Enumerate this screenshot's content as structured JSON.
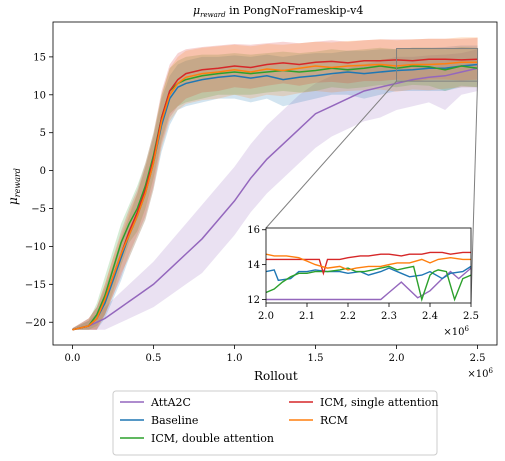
{
  "chart_data": [
    {
      "type": "line",
      "title_main": "μ",
      "title_sub": "reward",
      "title_rest": " in PongNoFrameskip-v4",
      "xlabel": "Rollout",
      "ylabel_main": "μ",
      "ylabel_sub": "reward",
      "xlim": [
        -0.12,
        2.62
      ],
      "ylim": [
        -23,
        19.6
      ],
      "xticks": [
        0.0,
        0.5,
        1.0,
        1.5,
        2.0,
        2.5
      ],
      "xtick_labels": [
        "0.0",
        "0.5",
        "1.0",
        "1.5",
        "2.0",
        "2.5"
      ],
      "x_multiplier": "×10",
      "x_multiplier_exp": "6",
      "yticks": [
        -20,
        -15,
        -10,
        -5,
        0,
        5,
        10,
        15
      ],
      "ytick_labels": [
        "−20",
        "−15",
        "−10",
        "−5",
        "0",
        "5",
        "10",
        "15"
      ],
      "legend_position": "below",
      "series": [
        {
          "name": "AttA2C",
          "color": "#9467bd",
          "band": true,
          "x": [
            0.0,
            0.1,
            0.2,
            0.3,
            0.4,
            0.5,
            0.6,
            0.7,
            0.8,
            0.9,
            1.0,
            1.1,
            1.2,
            1.3,
            1.4,
            1.5,
            1.6,
            1.7,
            1.8,
            1.9,
            2.0,
            2.1,
            2.2,
            2.3,
            2.4,
            2.5
          ],
          "y": [
            -21,
            -20.5,
            -19.5,
            -18,
            -16.5,
            -15,
            -13,
            -11,
            -9,
            -6.5,
            -4,
            -1,
            1.5,
            3.5,
            5.5,
            7.5,
            8.5,
            9.5,
            10.5,
            11,
            11.5,
            12,
            12.3,
            12.5,
            13,
            13.5
          ],
          "upper": [
            -20.8,
            -19.8,
            -18,
            -16,
            -14,
            -12,
            -9.5,
            -7,
            -4.5,
            -2,
            0.5,
            3.5,
            6,
            8,
            10,
            11.5,
            12.5,
            13.5,
            14,
            14.5,
            15,
            15,
            15.2,
            15.3,
            15.5,
            16
          ],
          "lower": [
            -21,
            -21,
            -21,
            -20,
            -19,
            -18,
            -16.5,
            -15,
            -13.5,
            -11,
            -8.5,
            -5.5,
            -3,
            -1,
            1,
            3,
            4.5,
            5.5,
            6.5,
            7,
            8,
            8.5,
            9,
            8,
            10,
            10.5
          ]
        },
        {
          "name": "Baseline",
          "color": "#1f77b4",
          "band": true,
          "x": [
            0.0,
            0.1,
            0.15,
            0.2,
            0.25,
            0.3,
            0.35,
            0.4,
            0.45,
            0.5,
            0.55,
            0.6,
            0.65,
            0.7,
            0.8,
            0.9,
            1.0,
            1.1,
            1.2,
            1.3,
            1.4,
            1.5,
            1.6,
            1.7,
            1.8,
            1.9,
            2.0,
            2.1,
            2.2,
            2.3,
            2.4,
            2.5
          ],
          "y": [
            -21,
            -20.5,
            -19.5,
            -17.5,
            -14.5,
            -11.5,
            -8.5,
            -6,
            -3,
            1,
            6,
            9.5,
            11,
            11.5,
            12,
            12.3,
            12.5,
            12.2,
            12.5,
            12,
            12.3,
            12.5,
            12.8,
            13,
            12.8,
            13,
            13.2,
            13.3,
            13.5,
            13.5,
            13.8,
            14
          ],
          "upper": [
            -20.8,
            -19.5,
            -18,
            -15.5,
            -12.5,
            -9,
            -6,
            -3,
            0.5,
            4.5,
            9.5,
            12.5,
            14,
            14.5,
            15,
            15,
            15.2,
            15,
            15.3,
            15,
            15.3,
            15.5,
            15.5,
            15.8,
            15.8,
            16,
            16,
            16.2,
            16.2,
            16.3,
            16.5,
            16.5
          ],
          "lower": [
            -21,
            -21,
            -21,
            -19.5,
            -17,
            -14.5,
            -11.5,
            -9,
            -6.5,
            -2.5,
            2.5,
            6,
            8,
            8.5,
            9,
            9.5,
            9.5,
            9,
            9.5,
            8.5,
            9,
            9.5,
            10,
            10,
            9.5,
            10,
            10.5,
            10.5,
            10.5,
            10.5,
            11,
            11
          ]
        },
        {
          "name": "ICM, double attention",
          "color": "#2ca02c",
          "band": true,
          "x": [
            0.0,
            0.1,
            0.15,
            0.2,
            0.25,
            0.3,
            0.35,
            0.4,
            0.45,
            0.5,
            0.55,
            0.6,
            0.65,
            0.7,
            0.8,
            0.9,
            1.0,
            1.1,
            1.2,
            1.3,
            1.4,
            1.5,
            1.6,
            1.7,
            1.8,
            1.9,
            2.0,
            2.1,
            2.2,
            2.3,
            2.4,
            2.5
          ],
          "y": [
            -21,
            -20.5,
            -19,
            -16.5,
            -13,
            -9.5,
            -7,
            -5,
            -2,
            2,
            7,
            10.5,
            11.5,
            12,
            12.5,
            12.8,
            13,
            12.8,
            13,
            13.2,
            13,
            13.2,
            13.5,
            13.3,
            13.5,
            13.8,
            13.5,
            13.8,
            13.7,
            13.3,
            13.8,
            13.5
          ],
          "upper": [
            -20.8,
            -19.8,
            -17.5,
            -14,
            -10.5,
            -7,
            -4.5,
            -2,
            1,
            5,
            10,
            13.5,
            14.5,
            15,
            15.3,
            15.3,
            15.5,
            15.3,
            15.5,
            15.7,
            15.5,
            15.7,
            16,
            15.8,
            16,
            16.2,
            16,
            16.2,
            16.2,
            16,
            16.3,
            16.2
          ],
          "lower": [
            -21,
            -21,
            -20.5,
            -19,
            -16,
            -12.5,
            -9.5,
            -8,
            -5,
            -1,
            4,
            7.5,
            8.5,
            9,
            9.5,
            10,
            10,
            10,
            10.3,
            10.5,
            10.3,
            10.5,
            11,
            10.8,
            11,
            11.3,
            11,
            11.3,
            11.2,
            10.5,
            11.2,
            11
          ]
        },
        {
          "name": "ICM, single attention",
          "color": "#d62728",
          "band": true,
          "x": [
            0.0,
            0.1,
            0.15,
            0.2,
            0.25,
            0.3,
            0.35,
            0.4,
            0.45,
            0.5,
            0.55,
            0.6,
            0.65,
            0.7,
            0.8,
            0.9,
            1.0,
            1.1,
            1.2,
            1.3,
            1.4,
            1.5,
            1.6,
            1.7,
            1.8,
            1.9,
            2.0,
            2.1,
            2.2,
            2.3,
            2.4,
            2.5
          ],
          "y": [
            -21,
            -20.5,
            -19.5,
            -17,
            -14,
            -11,
            -8,
            -5.5,
            -2.5,
            1.5,
            7,
            10.5,
            12,
            12.8,
            13.3,
            13.5,
            13.8,
            13.6,
            14,
            14.2,
            14,
            14.3,
            14.4,
            14.2,
            14.5,
            14.5,
            14.6,
            14.5,
            14.7,
            14.7,
            14.6,
            14.7
          ],
          "upper": [
            -20.8,
            -19.5,
            -18,
            -15,
            -11.5,
            -8,
            -5,
            -2.5,
            1,
            5,
            10.5,
            14,
            15.5,
            16,
            16.3,
            16.5,
            16.7,
            16.6,
            16.8,
            17,
            16.8,
            17,
            17.2,
            17,
            17.2,
            17.3,
            17.3,
            17.3,
            17.4,
            17.4,
            17.4,
            17.5
          ],
          "lower": [
            -21,
            -21,
            -21,
            -19,
            -16.5,
            -14,
            -11,
            -8.5,
            -6,
            -2,
            3.5,
            7,
            8.5,
            9.5,
            10.3,
            10.5,
            11,
            10.8,
            11.2,
            11.5,
            11.2,
            11.6,
            11.7,
            11.5,
            11.8,
            11.8,
            12,
            11.8,
            12,
            12,
            11.9,
            12
          ]
        },
        {
          "name": "RCM",
          "color": "#ff7f0e",
          "band": true,
          "x": [
            0.0,
            0.1,
            0.15,
            0.2,
            0.25,
            0.3,
            0.35,
            0.4,
            0.45,
            0.5,
            0.55,
            0.6,
            0.65,
            0.7,
            0.8,
            0.9,
            1.0,
            1.1,
            1.2,
            1.3,
            1.4,
            1.5,
            1.6,
            1.7,
            1.8,
            1.9,
            2.0,
            2.1,
            2.2,
            2.3,
            2.4,
            2.5
          ],
          "y": [
            -21,
            -20.5,
            -19.5,
            -17,
            -14,
            -11,
            -8.5,
            -6,
            -3,
            1,
            6.5,
            10,
            11.5,
            12.3,
            12.8,
            13,
            13.3,
            13,
            13.4,
            13.2,
            13.5,
            13.8,
            13.6,
            13.8,
            13.9,
            14,
            13.8,
            14,
            14,
            14.1,
            14.3,
            14.3
          ],
          "upper": [
            -20.8,
            -19.5,
            -18,
            -15,
            -11.5,
            -8.5,
            -5.5,
            -3,
            0.5,
            4.5,
            10,
            13.5,
            15,
            15.8,
            16.2,
            16.4,
            16.6,
            16.4,
            16.7,
            16.6,
            16.8,
            17,
            16.9,
            17.1,
            17.2,
            17.3,
            17.2,
            17.3,
            17.4,
            17.4,
            17.6,
            17.6
          ],
          "lower": [
            -21,
            -21,
            -21,
            -19,
            -16.5,
            -13.5,
            -11.5,
            -9,
            -6.5,
            -2.5,
            3,
            6.5,
            8,
            8.8,
            9.3,
            9.5,
            10,
            9.5,
            10,
            9.8,
            10.2,
            10.5,
            10.3,
            10.5,
            10.6,
            10.7,
            10.4,
            10.7,
            10.6,
            10.8,
            11,
            11
          ]
        }
      ]
    },
    {
      "type": "line",
      "role": "inset zoom",
      "xlim": [
        2.0,
        2.5
      ],
      "ylim": [
        11.8,
        16.1
      ],
      "xticks": [
        2.0,
        2.1,
        2.2,
        2.3,
        2.4,
        2.5
      ],
      "xtick_labels": [
        "2.0",
        "2.1",
        "2.2",
        "2.3",
        "2.4",
        "2.5"
      ],
      "yticks": [
        12,
        14,
        16
      ],
      "ytick_labels": [
        "12",
        "14",
        "16"
      ],
      "x_multiplier": "×10",
      "x_multiplier_exp": "6",
      "series": [
        {
          "name": "AttA2C",
          "color": "#9467bd",
          "x": [
            2.0,
            2.05,
            2.1,
            2.15,
            2.2,
            2.25,
            2.28,
            2.3,
            2.33,
            2.37,
            2.4,
            2.43,
            2.45,
            2.47,
            2.5
          ],
          "y": [
            12.0,
            12.0,
            12.0,
            12.0,
            12.0,
            12.0,
            12.0,
            12.4,
            13.0,
            12.1,
            12.5,
            13.2,
            13.6,
            13.2,
            13.8
          ]
        },
        {
          "name": "Baseline",
          "color": "#1f77b4",
          "x": [
            2.0,
            2.02,
            2.03,
            2.06,
            2.08,
            2.1,
            2.12,
            2.15,
            2.18,
            2.2,
            2.23,
            2.25,
            2.28,
            2.3,
            2.33,
            2.35,
            2.38,
            2.4,
            2.43,
            2.45,
            2.48,
            2.5
          ],
          "y": [
            13.6,
            13.7,
            13.1,
            13.2,
            13.6,
            13.6,
            13.7,
            13.6,
            13.6,
            13.5,
            13.6,
            13.4,
            13.6,
            13.8,
            13.5,
            13.3,
            13.4,
            13.6,
            13.2,
            13.5,
            13.6,
            13.9
          ]
        },
        {
          "name": "ICM, double attention",
          "color": "#2ca02c",
          "x": [
            2.0,
            2.02,
            2.04,
            2.06,
            2.08,
            2.1,
            2.12,
            2.15,
            2.18,
            2.2,
            2.22,
            2.24,
            2.26,
            2.28,
            2.3,
            2.32,
            2.34,
            2.36,
            2.38,
            2.4,
            2.41,
            2.42,
            2.44,
            2.46,
            2.48,
            2.5
          ],
          "y": [
            12.4,
            12.6,
            13.0,
            13.3,
            13.5,
            13.5,
            13.6,
            13.6,
            13.7,
            13.8,
            13.6,
            13.6,
            13.7,
            13.8,
            13.9,
            13.7,
            13.8,
            13.9,
            12.0,
            13.4,
            13.6,
            13.7,
            13.6,
            12.0,
            13.2,
            13.4
          ]
        },
        {
          "name": "ICM, single attention",
          "color": "#d62728",
          "x": [
            2.0,
            2.05,
            2.1,
            2.13,
            2.14,
            2.15,
            2.18,
            2.2,
            2.23,
            2.25,
            2.28,
            2.3,
            2.33,
            2.35,
            2.38,
            2.4,
            2.43,
            2.45,
            2.48,
            2.5
          ],
          "y": [
            14.3,
            14.3,
            14.3,
            14.3,
            13.5,
            14.3,
            14.3,
            14.4,
            14.5,
            14.5,
            14.6,
            14.6,
            14.5,
            14.6,
            14.6,
            14.7,
            14.7,
            14.6,
            14.7,
            14.7
          ]
        },
        {
          "name": "RCM",
          "color": "#ff7f0e",
          "x": [
            2.0,
            2.02,
            2.05,
            2.08,
            2.1,
            2.12,
            2.15,
            2.18,
            2.2,
            2.22,
            2.25,
            2.28,
            2.3,
            2.32,
            2.35,
            2.38,
            2.4,
            2.42,
            2.45,
            2.48,
            2.5
          ],
          "y": [
            14.6,
            14.5,
            14.5,
            14.4,
            14.2,
            14.0,
            13.8,
            13.9,
            13.7,
            13.8,
            13.9,
            13.9,
            14.0,
            14.1,
            14.1,
            14.3,
            14.1,
            14.3,
            14.4,
            14.3,
            14.3
          ]
        }
      ]
    }
  ]
}
